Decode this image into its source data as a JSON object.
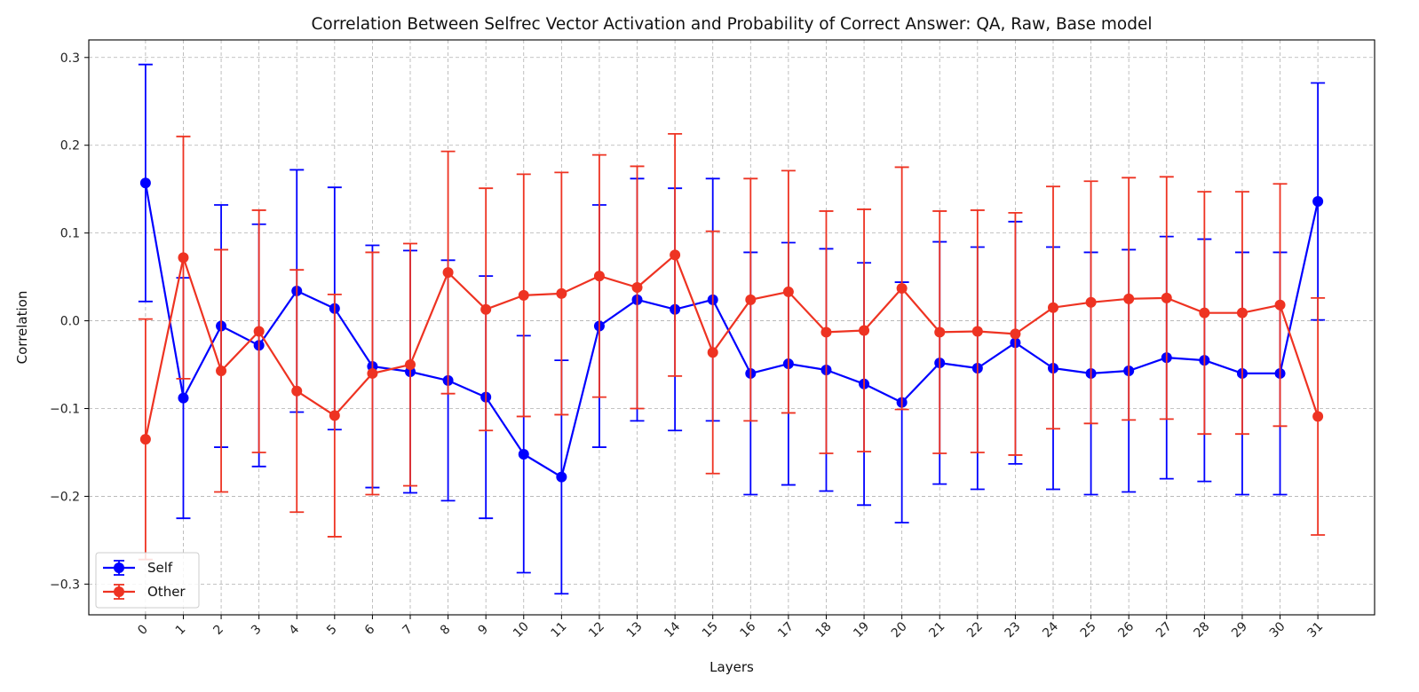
{
  "chart_data": {
    "type": "line",
    "title": "Correlation Between Selfrec Vector Activation and Probability of Correct Answer: QA, Raw, Base model",
    "xlabel": "Layers",
    "ylabel": "Correlation",
    "x": [
      0,
      1,
      2,
      3,
      4,
      5,
      6,
      7,
      8,
      9,
      10,
      11,
      12,
      13,
      14,
      15,
      16,
      17,
      18,
      19,
      20,
      21,
      22,
      23,
      24,
      25,
      26,
      27,
      28,
      29,
      30,
      31
    ],
    "xlim": [
      -1.5,
      32.5
    ],
    "ylim": [
      -0.335,
      0.32
    ],
    "yticks": [
      -0.3,
      -0.2,
      -0.1,
      0.0,
      0.1,
      0.2,
      0.3
    ],
    "ytick_labels": [
      "−0.3",
      "−0.2",
      "−0.1",
      "0.0",
      "0.1",
      "0.2",
      "0.3"
    ],
    "grid": true,
    "legend_position": "lower-left",
    "series": [
      {
        "name": "Self",
        "color": "#0000ff",
        "values": [
          0.157,
          -0.088,
          -0.006,
          -0.028,
          0.034,
          0.014,
          -0.052,
          -0.058,
          -0.068,
          -0.087,
          -0.152,
          -0.178,
          -0.006,
          0.024,
          0.013,
          0.024,
          -0.06,
          -0.049,
          -0.056,
          -0.072,
          -0.093,
          -0.048,
          -0.054,
          -0.025,
          -0.054,
          -0.06,
          -0.057,
          -0.042,
          -0.045,
          -0.06,
          -0.06,
          0.136
        ],
        "error": [
          0.135,
          0.137,
          0.138,
          0.138,
          0.138,
          0.138,
          0.138,
          0.138,
          0.137,
          0.138,
          0.135,
          0.133,
          0.138,
          0.138,
          0.138,
          0.138,
          0.138,
          0.138,
          0.138,
          0.138,
          0.137,
          0.138,
          0.138,
          0.138,
          0.138,
          0.138,
          0.138,
          0.138,
          0.138,
          0.138,
          0.138,
          0.135
        ]
      },
      {
        "name": "Other",
        "color": "#ee3322",
        "values": [
          -0.135,
          0.072,
          -0.057,
          -0.012,
          -0.08,
          -0.108,
          -0.06,
          -0.05,
          0.055,
          0.013,
          0.029,
          0.031,
          0.051,
          0.038,
          0.075,
          -0.036,
          0.024,
          0.033,
          -0.013,
          -0.011,
          0.037,
          -0.013,
          -0.012,
          -0.015,
          0.015,
          0.021,
          0.025,
          0.026,
          0.009,
          0.009,
          0.018,
          -0.109
        ],
        "error": [
          0.137,
          0.138,
          0.138,
          0.138,
          0.138,
          0.138,
          0.138,
          0.138,
          0.138,
          0.138,
          0.138,
          0.138,
          0.138,
          0.138,
          0.138,
          0.138,
          0.138,
          0.138,
          0.138,
          0.138,
          0.138,
          0.138,
          0.138,
          0.138,
          0.138,
          0.138,
          0.138,
          0.138,
          0.138,
          0.138,
          0.138,
          0.135
        ]
      }
    ]
  }
}
